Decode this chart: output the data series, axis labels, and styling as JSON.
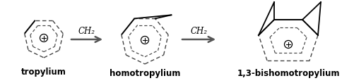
{
  "label1": "tropylium",
  "label2": "homotropylium",
  "label3": "1,3-bishomotropylium",
  "arrow_label": "CH₂",
  "label_fontsize": 8.5,
  "arrow_fontsize": 8.5,
  "text_color": "#000000",
  "solid_color": "#000000",
  "dashed_color": "#444444",
  "arrow_color": "#555555",
  "fig_w": 5.01,
  "fig_h": 1.18,
  "dpi": 100,
  "xlim": [
    0,
    501
  ],
  "ylim": [
    0,
    118
  ]
}
